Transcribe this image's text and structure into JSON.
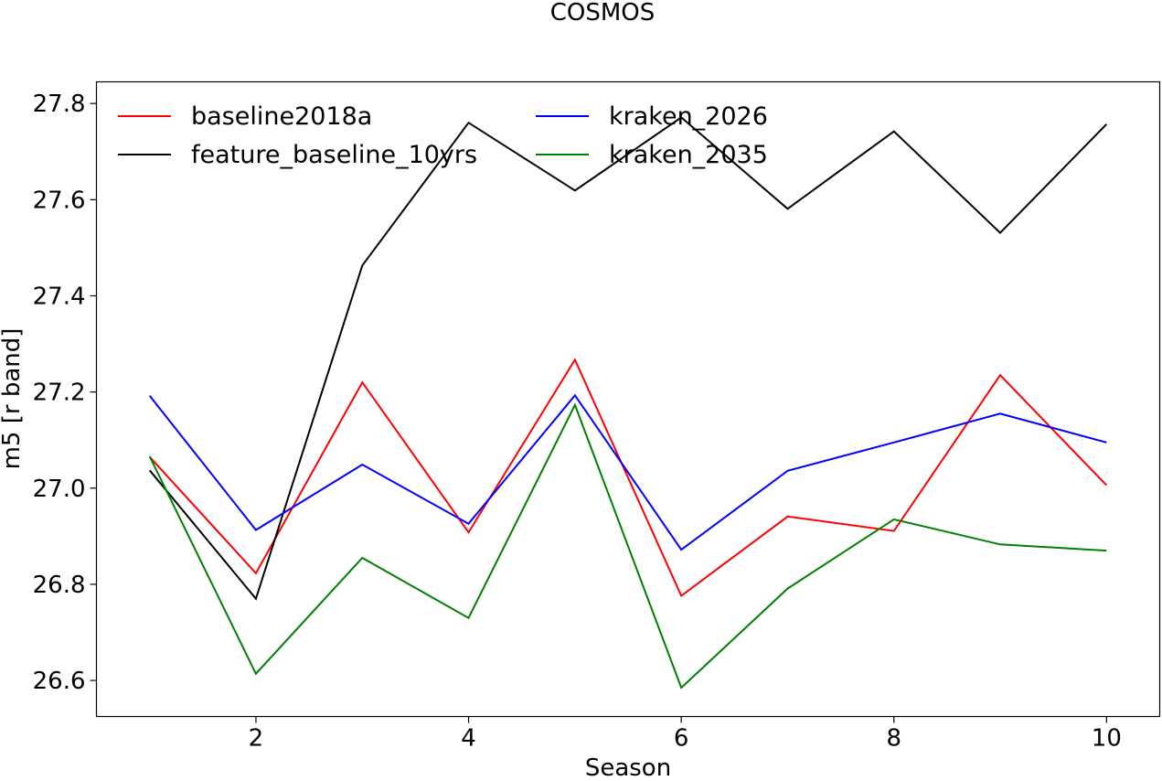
{
  "chart_data": {
    "type": "line",
    "title": "COSMOS",
    "xlabel": "Season",
    "ylabel": "m5 [r band]",
    "xlim": [
      0.5,
      10.5
    ],
    "ylim": [
      26.525,
      27.845
    ],
    "xticks": [
      2,
      4,
      6,
      8,
      10
    ],
    "yticks": [
      26.6,
      26.8,
      27.0,
      27.2,
      27.4,
      27.6,
      27.8
    ],
    "grid": false,
    "legend": "top-left, 2 columns",
    "x": [
      1,
      2,
      3,
      4,
      5,
      6,
      7,
      8,
      9,
      10
    ],
    "series": [
      {
        "name": "baseline2018a",
        "color": "#ff0000",
        "values": [
          27.065,
          26.823,
          27.22,
          26.908,
          27.267,
          26.776,
          26.941,
          26.911,
          27.235,
          27.006
        ]
      },
      {
        "name": "feature_baseline_10yrs",
        "color": "#000000",
        "values": [
          27.037,
          26.77,
          27.463,
          27.76,
          27.619,
          27.771,
          27.581,
          27.742,
          27.531,
          27.757
        ]
      },
      {
        "name": "kraken_2026",
        "color": "#0000ff",
        "values": [
          27.192,
          26.913,
          27.049,
          26.926,
          27.193,
          26.872,
          27.036,
          27.095,
          27.155,
          27.095
        ]
      },
      {
        "name": "kraken_2035",
        "color": "#008000",
        "values": [
          27.066,
          26.614,
          26.855,
          26.73,
          27.173,
          26.585,
          26.791,
          26.935,
          26.883,
          26.87
        ]
      }
    ]
  }
}
